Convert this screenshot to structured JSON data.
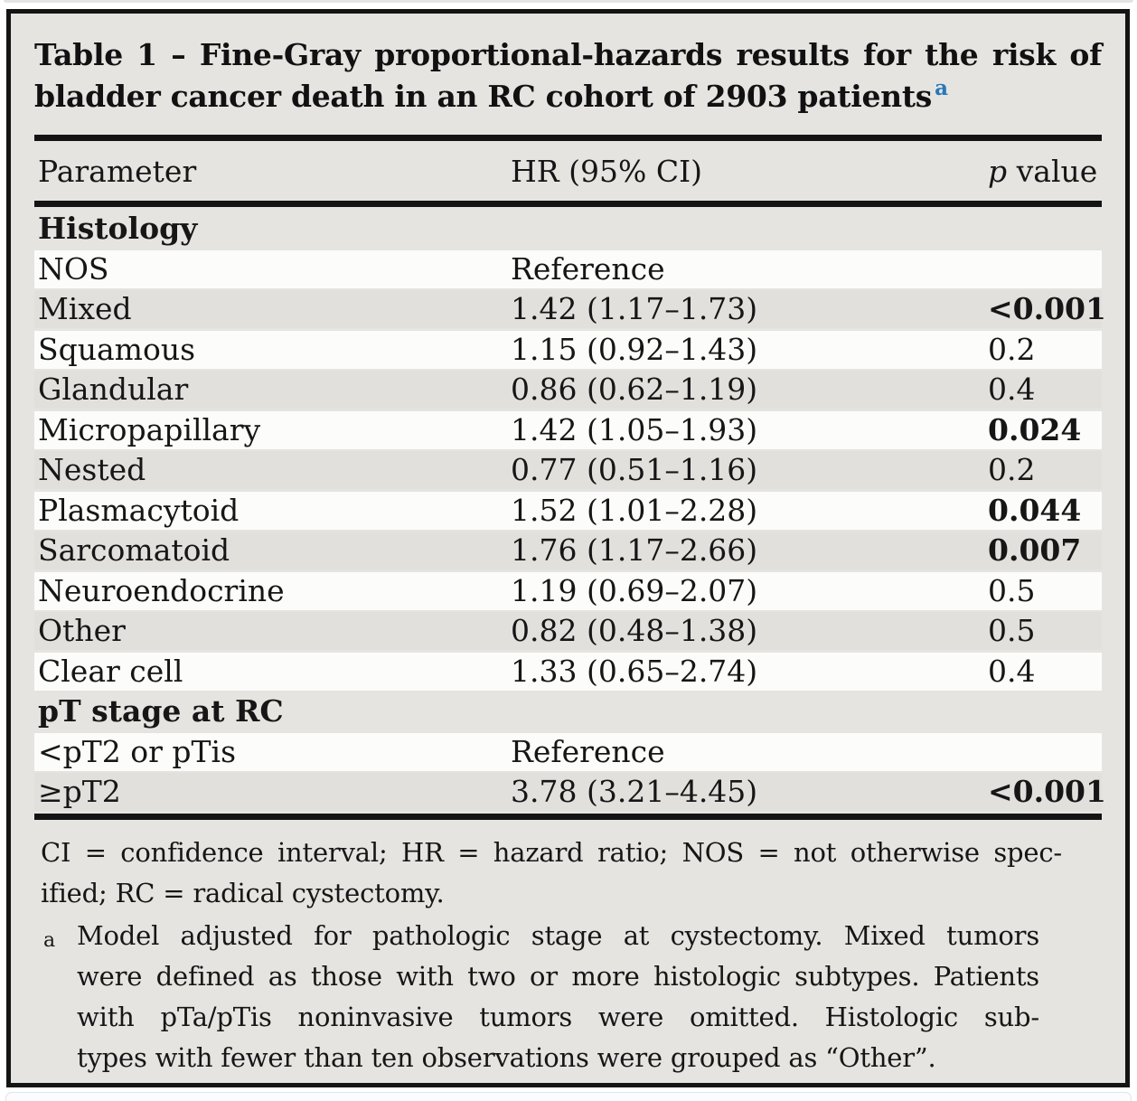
{
  "colors": {
    "footnote_marker_blue": "#2878b8",
    "table_background_gray": "#e5e4e1",
    "row_stripe_white": "#fcfcfb",
    "row_stripe_gray": "#e1e0dd",
    "border_black": "#141414"
  },
  "table": {
    "title": {
      "lines": [
        "Table 1 – Fine-Gray proportional-hazards results for the risk of",
        "bladder cancer death in an RC cohort of 2903 patients"
      ],
      "footnote_marker": "a"
    },
    "header": {
      "parameter": "Parameter",
      "hr": "HR (95% CI)",
      "p_italic": "p",
      "p_rest": "value"
    },
    "rows": [
      {
        "type": "section",
        "label": "Histology"
      },
      {
        "type": "data",
        "label": "NOS",
        "hr": "Reference",
        "p": "",
        "p_bold": false
      },
      {
        "type": "data",
        "label": "Mixed",
        "hr": "1.42 (1.17–1.73)",
        "p": "<0.001",
        "p_bold": true
      },
      {
        "type": "data",
        "label": "Squamous",
        "hr": "1.15 (0.92–1.43)",
        "p": "0.2",
        "p_bold": false
      },
      {
        "type": "data",
        "label": "Glandular",
        "hr": "0.86 (0.62–1.19)",
        "p": "0.4",
        "p_bold": false
      },
      {
        "type": "data",
        "label": "Micropapillary",
        "hr": "1.42 (1.05–1.93)",
        "p": "0.024",
        "p_bold": true
      },
      {
        "type": "data",
        "label": "Nested",
        "hr": "0.77 (0.51–1.16)",
        "p": "0.2",
        "p_bold": false
      },
      {
        "type": "data",
        "label": "Plasmacytoid",
        "hr": "1.52 (1.01–2.28)",
        "p": "0.044",
        "p_bold": true
      },
      {
        "type": "data",
        "label": "Sarcomatoid",
        "hr": "1.76 (1.17–2.66)",
        "p": "0.007",
        "p_bold": true
      },
      {
        "type": "data",
        "label": "Neuroendocrine",
        "hr": "1.19 (0.69–2.07)",
        "p": "0.5",
        "p_bold": false
      },
      {
        "type": "data",
        "label": "Other",
        "hr": "0.82 (0.48–1.38)",
        "p": "0.5",
        "p_bold": false
      },
      {
        "type": "data",
        "label": "Clear cell",
        "hr": "1.33 (0.65–2.74)",
        "p": "0.4",
        "p_bold": false
      },
      {
        "type": "section",
        "label": "pT stage at RC"
      },
      {
        "type": "data",
        "label": "<pT2 or pTis",
        "hr": "Reference",
        "p": "",
        "p_bold": false
      },
      {
        "type": "data",
        "label": "≥pT2",
        "hr": "3.78 (3.21–4.45)",
        "p": "<0.001",
        "p_bold": true
      }
    ]
  },
  "footnotes": {
    "abbreviations": {
      "lines": [
        "CI = confidence interval; HR = hazard ratio; NOS = not otherwise spec-",
        "ified; RC = radical cystectomy."
      ]
    },
    "note_a": {
      "marker": "a",
      "lines": [
        "Model adjusted for pathologic stage at cystectomy. Mixed tumors",
        "were defined as those with two or more histologic subtypes. Patients",
        "with pTa/pTis noninvasive tumors were omitted. Histologic sub-",
        "types with fewer than ten observations were grouped as “Other”."
      ]
    }
  }
}
